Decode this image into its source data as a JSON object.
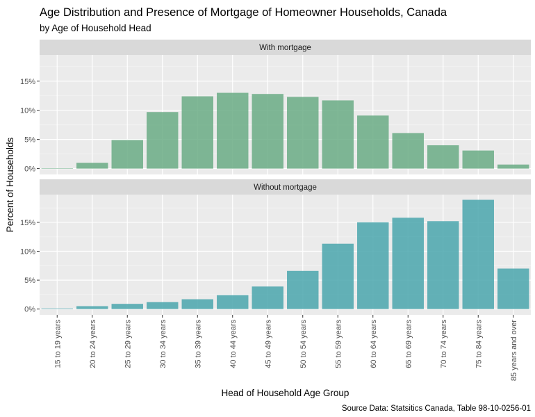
{
  "chart_data": {
    "type": "bar",
    "title": "Age Distribution and Presence of Mortgage of Homeowner Households, Canada",
    "subtitle": "by Age of Household Head",
    "xlabel": "Head of Household Age Group",
    "ylabel": "Percent of Households",
    "caption": "Source Data: Statsitics Canada, Table 98-10-0256-01",
    "categories": [
      "15 to 19 years",
      "20 to 24 years",
      "25 to 29 years",
      "30 to 34 years",
      "35 to 39 years",
      "40 to 44 years",
      "45 to 49 years",
      "50 to 54 years",
      "55 to 59 years",
      "60 to 64 years",
      "65 to 69 years",
      "70 to 74 years",
      "75 to 84 years",
      "85 years and over"
    ],
    "y_tick_labels": [
      "0%",
      "5%",
      "10%",
      "15%"
    ],
    "panels": [
      {
        "strip": "With mortgage",
        "color": "#6AAB85",
        "ylim": [
          -1,
          19.5
        ],
        "y_ticks": [
          0,
          5,
          10,
          15
        ],
        "values": [
          0.05,
          1.0,
          4.9,
          9.7,
          12.4,
          13.0,
          12.8,
          12.3,
          11.7,
          9.1,
          6.1,
          4.0,
          3.1,
          0.7
        ]
      },
      {
        "strip": "Without mortgage",
        "color": "#4AA6AD",
        "ylim": [
          -1,
          19.8
        ],
        "y_ticks": [
          0,
          5,
          10,
          15
        ],
        "values": [
          0.1,
          0.5,
          0.9,
          1.2,
          1.7,
          2.4,
          3.9,
          6.6,
          11.3,
          15.0,
          15.8,
          15.2,
          18.9,
          7.0
        ]
      }
    ],
    "grid": true,
    "legend": "none"
  }
}
